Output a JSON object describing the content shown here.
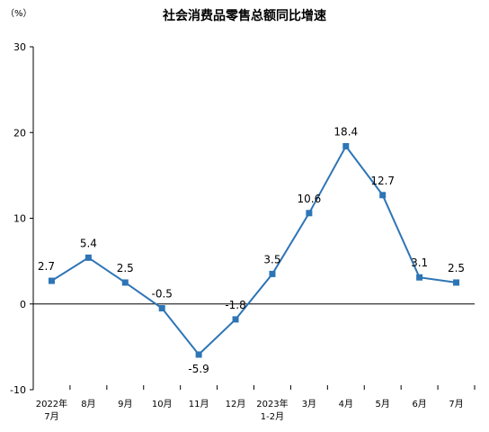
{
  "chart_data": {
    "type": "line",
    "title": "社会消费品零售总额同比增速",
    "ylabel": "（%）",
    "ylim": [
      -10,
      30
    ],
    "yticks": [
      30,
      20,
      10,
      0,
      -10
    ],
    "categories": [
      [
        "2022年",
        "7月"
      ],
      [
        "8月"
      ],
      [
        "9月"
      ],
      [
        "10月"
      ],
      [
        "11月"
      ],
      [
        "12月"
      ],
      [
        "2023年",
        "1-2月"
      ],
      [
        "3月"
      ],
      [
        "4月"
      ],
      [
        "5月"
      ],
      [
        "6月"
      ],
      [
        "7月"
      ]
    ],
    "series": [
      {
        "values": [
          2.7,
          5.4,
          2.5,
          -0.5,
          -5.9,
          -1.8,
          3.5,
          10.6,
          18.4,
          12.7,
          3.1,
          2.5
        ],
        "labels": [
          "2.7",
          "5.4",
          "2.5",
          "-0.5",
          "-5.9",
          "-1.8",
          "3.5",
          "10.6",
          "18.4",
          "12.7",
          "3.1",
          "2.5"
        ],
        "color": "#2e75b6"
      }
    ],
    "grid": false,
    "legend": "none"
  }
}
